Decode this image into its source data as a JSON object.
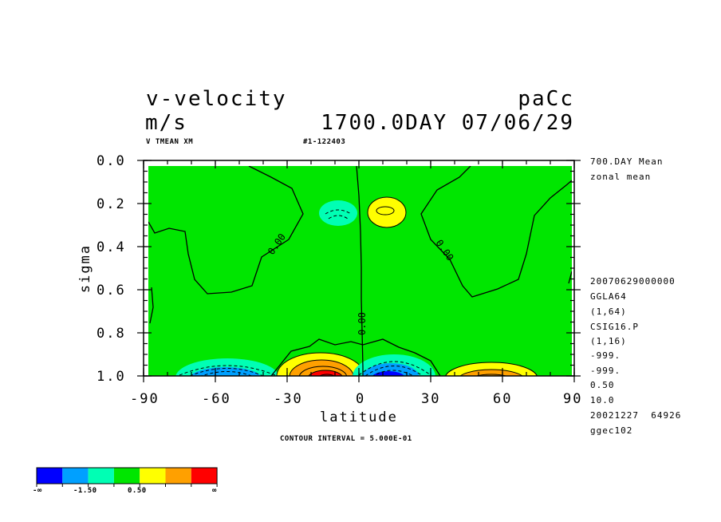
{
  "header": {
    "variable": "v-velocity",
    "units": "m/s",
    "run": "paCc",
    "time": "1700.0DAY 07/06/29",
    "label_left": "V TMEAN XM",
    "label_id": "#1-122403"
  },
  "right_info": {
    "mean": "700.DAY Mean",
    "type": "zonal mean",
    "lines": [
      "20070629000000",
      "GGLA64",
      "(1,64)",
      "CSIG16.P",
      "(1,16)",
      "-999.",
      "-999.",
      "0.50",
      "10.0",
      "20021227  64926",
      "ggec102"
    ]
  },
  "footer": {
    "contour_interval": "CONTOUR INTERVAL = 5.000E-01"
  },
  "colorbar": {
    "colors": [
      "#0000ff",
      "#00a0ff",
      "#00ffb4",
      "#00e600",
      "#ffff00",
      "#ffa000",
      "#ff0000"
    ],
    "labels": [
      "-∞",
      "-1.50",
      "0.50",
      "∞"
    ]
  },
  "chart_data": {
    "type": "contour",
    "title": "v-velocity",
    "xlabel": "latitude",
    "ylabel": "sigma",
    "xlim": [
      -90,
      90
    ],
    "ylim": [
      1.0,
      0.0
    ],
    "x_ticks": [
      "-90",
      "-60",
      "-30",
      "0",
      "30",
      "60",
      "90"
    ],
    "y_ticks": [
      "0.0",
      "0.2",
      "0.4",
      "0.6",
      "0.8",
      "1.0"
    ],
    "x_tick_values": [
      -90,
      -60,
      -30,
      0,
      30,
      60,
      90
    ],
    "y_tick_values": [
      0.0,
      0.2,
      0.4,
      0.6,
      0.8,
      1.0
    ],
    "contour_interval": 0.5,
    "contour_labels": [
      "0.00",
      "0.00",
      "0.00"
    ],
    "features": [
      {
        "name": "upper-negative-cell",
        "sign": "negative",
        "lat": -9,
        "sigma": 0.24
      },
      {
        "name": "upper-positive-cell",
        "sign": "positive",
        "lat": 13,
        "sigma": 0.24
      },
      {
        "name": "surface-negative-cell-sh",
        "sign": "negative",
        "lat": -58,
        "sigma": 0.98
      },
      {
        "name": "surface-positive-cell-sh",
        "sign": "positive",
        "lat": -13,
        "sigma": 0.97
      },
      {
        "name": "surface-negative-cell-nh",
        "sign": "negative",
        "lat": 11,
        "sigma": 0.97
      },
      {
        "name": "surface-positive-cell-nh",
        "sign": "positive",
        "lat": 55,
        "sigma": 0.98
      }
    ]
  }
}
